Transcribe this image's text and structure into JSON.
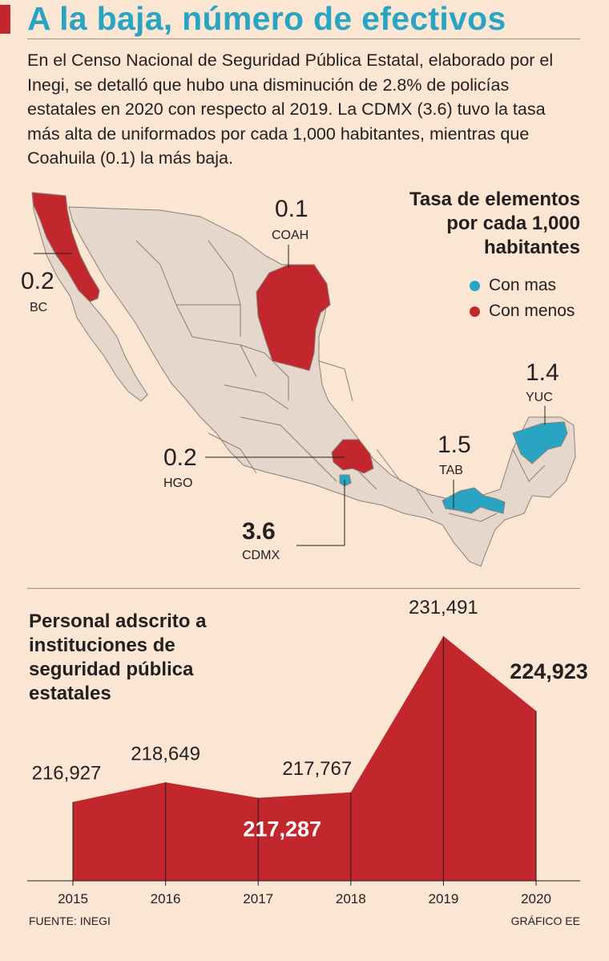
{
  "header": {
    "title": "A la baja, número de efectivos",
    "intro": "En el Censo Nacional de Seguridad Pública Estatal, elaborado por el Inegi, se detalló que hubo una disminución de 2.8% de policías estatales en 2020 con respecto al 2019. La CDMX (3.6) tuvo la tasa más alta de uniformados por cada 1,000 habitantes, mientras que Coahuila (0.1) la más baja."
  },
  "map": {
    "title_lines": [
      "Tasa de elementos",
      "por cada 1,000",
      "habitantes"
    ],
    "legend": [
      {
        "label": "Con mas",
        "color": "#2aa4c3"
      },
      {
        "label": "Con menos",
        "color": "#c1272d"
      }
    ],
    "states": [
      {
        "abbr": "BC",
        "value": "0.2",
        "group": "Con menos"
      },
      {
        "abbr": "COAH",
        "value": "0.1",
        "group": "Con menos"
      },
      {
        "abbr": "HGO",
        "value": "0.2",
        "group": "Con menos"
      },
      {
        "abbr": "CDMX",
        "value": "3.6",
        "group": "Con mas"
      },
      {
        "abbr": "TAB",
        "value": "1.5",
        "group": "Con mas"
      },
      {
        "abbr": "YUC",
        "value": "1.4",
        "group": "Con mas"
      }
    ],
    "colors": {
      "land": "#e5d7cc",
      "border": "#8a7f78",
      "high": "#2aa4c3",
      "low": "#c1272d"
    }
  },
  "chart_title": "Personal adscrito a instituciones de seguridad pública estatales",
  "chart_data": {
    "type": "area",
    "title": "Personal adscrito a instituciones de seguridad pública estatales",
    "x": [
      "2015",
      "2016",
      "2017",
      "2018",
      "2019",
      "2020"
    ],
    "values": [
      216927,
      218649,
      217287,
      217767,
      231491,
      224923
    ],
    "labels": [
      "216,927",
      "218,649",
      "217,287",
      "217,767",
      "231,491",
      "224,923"
    ],
    "highlighted": [
      "2017",
      "2020"
    ],
    "color": "#c1272d"
  },
  "footer": {
    "source": "FUENTE: INEGI",
    "credit": "GRÁFICO EE"
  }
}
